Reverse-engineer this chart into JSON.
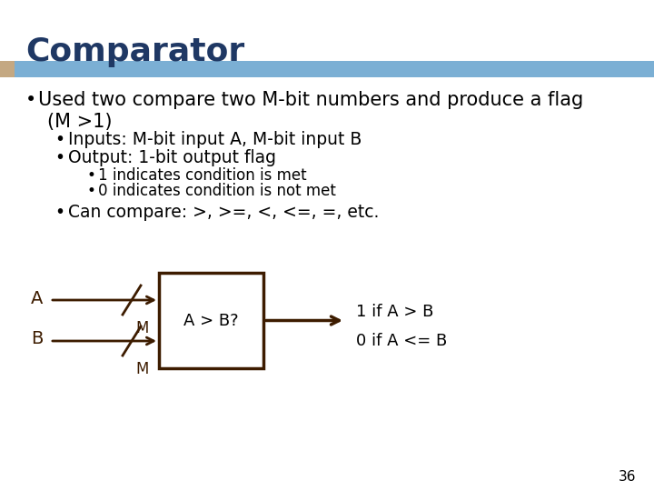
{
  "title": "Comparator",
  "title_color": "#1F3864",
  "title_fontsize": 26,
  "header_bar_color": "#7BAFD4",
  "header_bar_left_color": "#C4A882",
  "background_color": "#FFFFFF",
  "bullet1_line1": "Used two compare two M-bit numbers and produce a flag",
  "bullet1_line2": "(M >1)",
  "bullet1_fontsize": 15,
  "sub_bullet1": "Inputs: M-bit input A, M-bit input B",
  "sub_bullet2": "Output: 1-bit output flag",
  "sub_bullet_fontsize": 13.5,
  "sub_sub_bullet1": "1 indicates condition is met",
  "sub_sub_bullet2": "0 indicates condition is not met",
  "sub_sub_bullet_fontsize": 12,
  "sub_bullet3": "Can compare: >, >=, <, <=, =, etc.",
  "box_label": "A > B?",
  "box_color": "#FFFFFF",
  "box_edge_color": "#3D1C00",
  "arrow_color": "#3D1C00",
  "label_A": "A",
  "label_B": "B",
  "label_M_A": "M",
  "label_M_B": "M",
  "output_line1": "1 if A > B",
  "output_line2": "0 if A <= B",
  "page_number": "36",
  "text_color": "#000000",
  "diagram_text_color": "#3D1C00"
}
